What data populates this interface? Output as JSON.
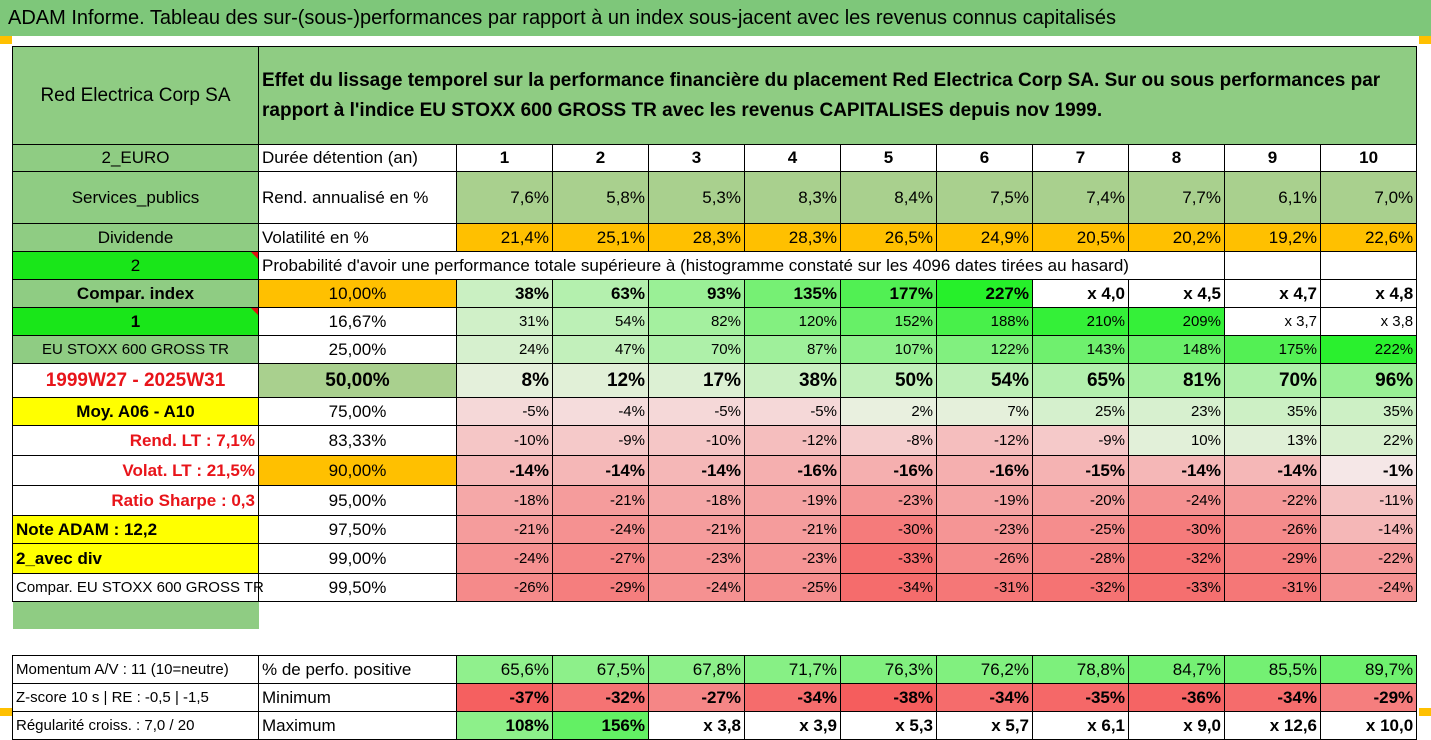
{
  "title": "ADAM Informe. Tableau des sur-(sous-)performances par rapport à un index sous-jacent avec les revenus connus capitalisés",
  "company": "Red Electrica Corp SA",
  "description": "Effet du lissage temporel sur la performance financière du placement Red Electrica Corp SA. Sur ou sous performances par rapport à l'indice EU STOXX 600 GROSS TR avec les revenus CAPITALISES depuis nov 1999.",
  "side": {
    "currency": "2_EURO",
    "sector": "Services_publics",
    "div": "Dividende",
    "num2": "2",
    "compar": "Compar. index",
    "num1": "1",
    "index_name": "EU STOXX 600 GROSS TR",
    "period": "1999W27 - 2025W31",
    "moy": "Moy. A06 - A10",
    "rend_lt": "Rend. LT :    7,1%",
    "volat_lt": "Volat. LT :    21,5%",
    "sharpe": "Ratio Sharpe :    0,3",
    "note": "Note ADAM : 12,2",
    "avec_div": "2_avec div",
    "compar_index": "Compar. EU STOXX 600 GROSS TR",
    "momentum": "Momentum A/V : 11 (10=neutre)",
    "zscore": "Z-score 10 s  |  RE : -0,5  |  -1,5",
    "regularite": "Régularité croiss. : 7,0 / 20"
  },
  "labels": {
    "duree": "Durée détention (an)",
    "rend": "Rend. annualisé en %",
    "vol": "Volatilité en %",
    "proba": "Probabilité d'avoir une performance totale supérieure à (histogramme constaté sur les 4096 dates tirées au hasard)",
    "pos": "% de perfo. positive",
    "min": "Minimum",
    "max": "Maximum"
  },
  "years": [
    "1",
    "2",
    "3",
    "4",
    "5",
    "6",
    "7",
    "8",
    "9",
    "10"
  ],
  "rend": [
    "7,6%",
    "5,8%",
    "5,3%",
    "8,3%",
    "8,4%",
    "7,5%",
    "7,4%",
    "7,7%",
    "6,1%",
    "7,0%"
  ],
  "vol": [
    "21,4%",
    "25,1%",
    "28,3%",
    "28,3%",
    "26,5%",
    "24,9%",
    "20,5%",
    "20,2%",
    "19,2%",
    "22,6%"
  ],
  "prob_rows": [
    {
      "p": "10,00%",
      "v": [
        "38%",
        "63%",
        "93%",
        "135%",
        "177%",
        "227%",
        "x 4,0",
        "x 4,5",
        "x 4,7",
        "x 4,8"
      ]
    },
    {
      "p": "16,67%",
      "v": [
        "31%",
        "54%",
        "82%",
        "120%",
        "152%",
        "188%",
        "210%",
        "209%",
        "x 3,7",
        "x 3,8"
      ]
    },
    {
      "p": "25,00%",
      "v": [
        "24%",
        "47%",
        "70%",
        "87%",
        "107%",
        "122%",
        "143%",
        "148%",
        "175%",
        "222%"
      ]
    },
    {
      "p": "50,00%",
      "v": [
        "8%",
        "12%",
        "17%",
        "38%",
        "50%",
        "54%",
        "65%",
        "81%",
        "70%",
        "96%"
      ]
    },
    {
      "p": "75,00%",
      "v": [
        "-5%",
        "-4%",
        "-5%",
        "-5%",
        "2%",
        "7%",
        "25%",
        "23%",
        "35%",
        "35%"
      ]
    },
    {
      "p": "83,33%",
      "v": [
        "-10%",
        "-9%",
        "-10%",
        "-12%",
        "-8%",
        "-12%",
        "-9%",
        "10%",
        "13%",
        "22%"
      ]
    },
    {
      "p": "90,00%",
      "v": [
        "-14%",
        "-14%",
        "-14%",
        "-16%",
        "-16%",
        "-16%",
        "-15%",
        "-14%",
        "-14%",
        "-1%"
      ]
    },
    {
      "p": "95,00%",
      "v": [
        "-18%",
        "-21%",
        "-18%",
        "-19%",
        "-23%",
        "-19%",
        "-20%",
        "-24%",
        "-22%",
        "-11%"
      ]
    },
    {
      "p": "97,50%",
      "v": [
        "-21%",
        "-24%",
        "-21%",
        "-21%",
        "-30%",
        "-23%",
        "-25%",
        "-30%",
        "-26%",
        "-14%"
      ]
    },
    {
      "p": "99,00%",
      "v": [
        "-24%",
        "-27%",
        "-23%",
        "-23%",
        "-33%",
        "-26%",
        "-28%",
        "-32%",
        "-29%",
        "-22%"
      ]
    },
    {
      "p": "99,50%",
      "v": [
        "-26%",
        "-29%",
        "-24%",
        "-25%",
        "-34%",
        "-31%",
        "-32%",
        "-33%",
        "-31%",
        "-24%"
      ]
    }
  ],
  "pos": [
    "65,6%",
    "67,5%",
    "67,8%",
    "71,7%",
    "76,3%",
    "76,2%",
    "78,8%",
    "84,7%",
    "85,5%",
    "89,7%"
  ],
  "min": [
    "-37%",
    "-32%",
    "-27%",
    "-34%",
    "-38%",
    "-34%",
    "-35%",
    "-36%",
    "-34%",
    "-29%"
  ],
  "max": [
    "108%",
    "156%",
    "x 3,8",
    "x 3,9",
    "x 5,3",
    "x 5,7",
    "x 6,1",
    "x 9,0",
    "x 12,6",
    "x 10,0"
  ],
  "colors": {
    "header_green": "#8fcc83",
    "bright_green": "#19e619",
    "yellow": "#ffff00",
    "orange": "#ffc000",
    "red_text": "#e8141a"
  }
}
